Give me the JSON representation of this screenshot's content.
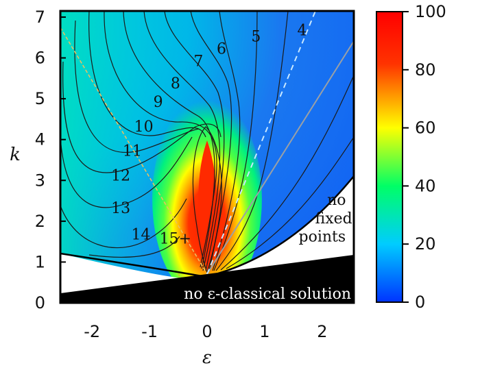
{
  "chart_data": {
    "type": "heatmap",
    "title": "",
    "xlabel": "ε",
    "ylabel": "k",
    "xlim": [
      -2.55,
      2.55
    ],
    "ylim": [
      0,
      7.15
    ],
    "xticks": [
      {
        "value": -2,
        "label": "-2"
      },
      {
        "value": -1,
        "label": "-1"
      },
      {
        "value": 0,
        "label": "0"
      },
      {
        "value": 1,
        "label": "1"
      },
      {
        "value": 2,
        "label": "2"
      }
    ],
    "yticks": [
      {
        "value": 0,
        "label": "0"
      },
      {
        "value": 1,
        "label": "1"
      },
      {
        "value": 2,
        "label": "2"
      },
      {
        "value": 3,
        "label": "3"
      },
      {
        "value": 4,
        "label": "4"
      },
      {
        "value": 5,
        "label": "5"
      },
      {
        "value": 6,
        "label": "6"
      },
      {
        "value": 7,
        "label": "7"
      }
    ],
    "colorbar": {
      "range": [
        0,
        100
      ],
      "ticks": [
        {
          "value": 0,
          "label": "0"
        },
        {
          "value": 20,
          "label": "20"
        },
        {
          "value": 40,
          "label": "40"
        },
        {
          "value": 60,
          "label": "60"
        },
        {
          "value": 80,
          "label": "80"
        },
        {
          "value": 100,
          "label": "100"
        }
      ],
      "colors": [
        "#0033ff",
        "#00ccff",
        "#00ff66",
        "#ffff00",
        "#ff3300",
        "#ff0000"
      ]
    },
    "contour_labels": [
      {
        "text": "4",
        "x": 1.65,
        "y": 6.55
      },
      {
        "text": "5",
        "x": 0.85,
        "y": 6.4
      },
      {
        "text": "6",
        "x": 0.25,
        "y": 6.1
      },
      {
        "text": "7",
        "x": -0.15,
        "y": 5.8
      },
      {
        "text": "8",
        "x": -0.55,
        "y": 5.25
      },
      {
        "text": "9",
        "x": -0.85,
        "y": 4.8
      },
      {
        "text": "10",
        "x": -1.1,
        "y": 4.2
      },
      {
        "text": "11",
        "x": -1.3,
        "y": 3.6
      },
      {
        "text": "12",
        "x": -1.5,
        "y": 3.0
      },
      {
        "text": "13",
        "x": -1.5,
        "y": 2.2
      },
      {
        "text": "14",
        "x": -1.15,
        "y": 1.55
      },
      {
        "text": "15+",
        "x": -0.55,
        "y": 1.45
      }
    ],
    "regions": [
      {
        "text": "no",
        "x": 2.25,
        "y": 2.4
      },
      {
        "text": "fixed",
        "x": 2.2,
        "y": 1.95
      },
      {
        "text": "points",
        "x": 2.0,
        "y": 1.5
      }
    ],
    "region_bottom": "no ε-classical solution"
  }
}
